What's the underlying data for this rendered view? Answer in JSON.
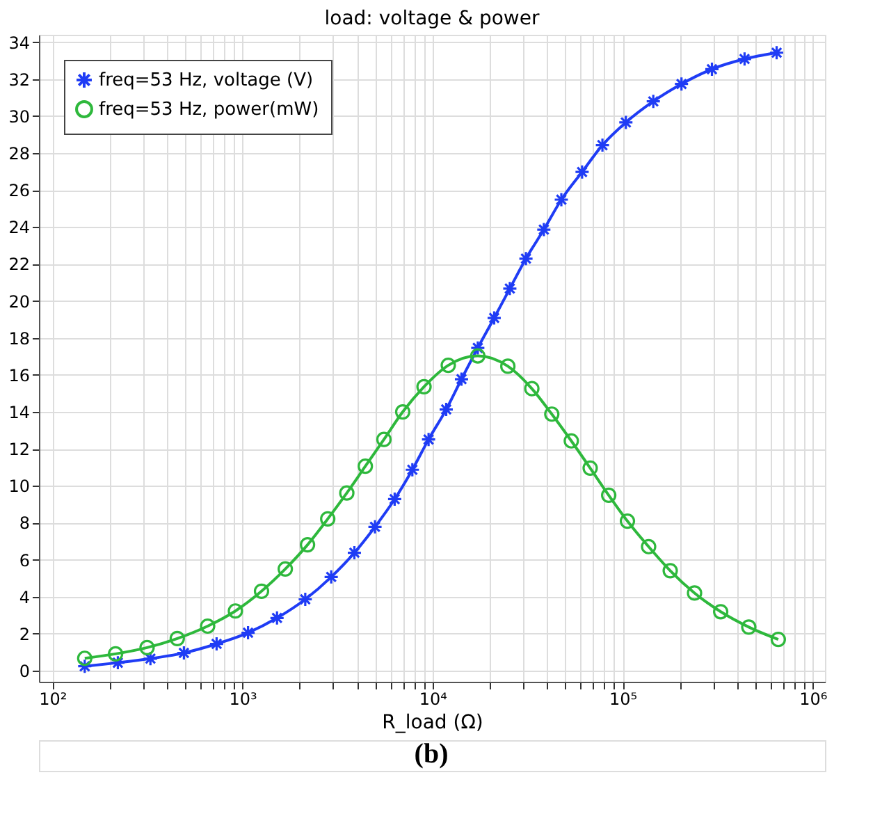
{
  "chart_data": {
    "type": "line",
    "title": "load: voltage & power",
    "xlabel": "R_load (Ω)",
    "annotations": [
      "(b)"
    ],
    "log": "x",
    "grid": true,
    "legend": "top left",
    "xlim": [
      85,
      1160000
    ],
    "ylim": [
      -0.6,
      34.4
    ],
    "xticks": [
      {
        "value": 100,
        "label": "10²"
      },
      {
        "value": 200,
        "label": null
      },
      {
        "value": 300,
        "label": null
      },
      {
        "value": 400,
        "label": null
      },
      {
        "value": 500,
        "label": null
      },
      {
        "value": 600,
        "label": null
      },
      {
        "value": 700,
        "label": null
      },
      {
        "value": 800,
        "label": null
      },
      {
        "value": 900,
        "label": null
      },
      {
        "value": 1000,
        "label": "10³"
      },
      {
        "value": 2000,
        "label": null
      },
      {
        "value": 3000,
        "label": null
      },
      {
        "value": 4000,
        "label": null
      },
      {
        "value": 5000,
        "label": null
      },
      {
        "value": 6000,
        "label": null
      },
      {
        "value": 7000,
        "label": null
      },
      {
        "value": 8000,
        "label": null
      },
      {
        "value": 9000,
        "label": null
      },
      {
        "value": 10000,
        "label": "10⁴"
      },
      {
        "value": 20000,
        "label": null
      },
      {
        "value": 30000,
        "label": null
      },
      {
        "value": 40000,
        "label": null
      },
      {
        "value": 50000,
        "label": null
      },
      {
        "value": 60000,
        "label": null
      },
      {
        "value": 70000,
        "label": null
      },
      {
        "value": 80000,
        "label": null
      },
      {
        "value": 90000,
        "label": null
      },
      {
        "value": 100000,
        "label": "10⁵"
      },
      {
        "value": 200000,
        "label": null
      },
      {
        "value": 300000,
        "label": null
      },
      {
        "value": 400000,
        "label": null
      },
      {
        "value": 500000,
        "label": null
      },
      {
        "value": 600000,
        "label": null
      },
      {
        "value": 700000,
        "label": null
      },
      {
        "value": 800000,
        "label": null
      },
      {
        "value": 900000,
        "label": null
      },
      {
        "value": 1000000,
        "label": "10⁶"
      }
    ],
    "yticks": [
      0,
      2,
      4,
      6,
      8,
      10,
      12,
      14,
      16,
      18,
      20,
      22,
      24,
      26,
      28,
      30,
      32,
      34
    ],
    "series": [
      {
        "name": "freq=53 Hz, voltage (V)",
        "color": "#1f3cf5",
        "marker": "cross",
        "x": [
          148,
          221,
          328,
          492,
          731,
          1070,
          1520,
          2140,
          2930,
          3880,
          4980,
          6320,
          7830,
          9530,
          11800,
          14200,
          17300,
          21100,
          25500,
          31000,
          38500,
          47600,
          61200,
          78300,
          104000,
          145000,
          204000,
          295000,
          438000,
          646000
        ],
        "values": [
          0.24,
          0.43,
          0.65,
          0.96,
          1.45,
          2.05,
          2.85,
          3.86,
          5.07,
          6.38,
          7.78,
          9.28,
          10.87,
          12.51,
          14.13,
          15.77,
          17.46,
          19.08,
          20.67,
          22.29,
          23.86,
          25.48,
          26.98,
          28.43,
          29.66,
          30.8,
          31.74,
          32.54,
          33.09,
          33.43
        ]
      },
      {
        "name": "freq=53 Hz, power(mW)",
        "color": "#2eb83c",
        "marker": "circle",
        "x": [
          148,
          215,
          315,
          454,
          656,
          918,
          1260,
          1680,
          2200,
          2810,
          3540,
          4430,
          5550,
          6970,
          9020,
          12100,
          17300,
          24900,
          33300,
          42400,
          53700,
          67500,
          84500,
          106000,
          137000,
          178000,
          239000,
          328000,
          461000,
          659000
        ],
        "values": [
          0.67,
          0.91,
          1.25,
          1.74,
          2.41,
          3.23,
          4.3,
          5.5,
          6.81,
          8.21,
          9.61,
          11.06,
          12.51,
          14.0,
          15.36,
          16.52,
          17.03,
          16.47,
          15.26,
          13.88,
          12.43,
          10.96,
          9.49,
          8.09,
          6.71,
          5.41,
          4.2,
          3.19,
          2.36,
          1.69
        ]
      }
    ]
  }
}
